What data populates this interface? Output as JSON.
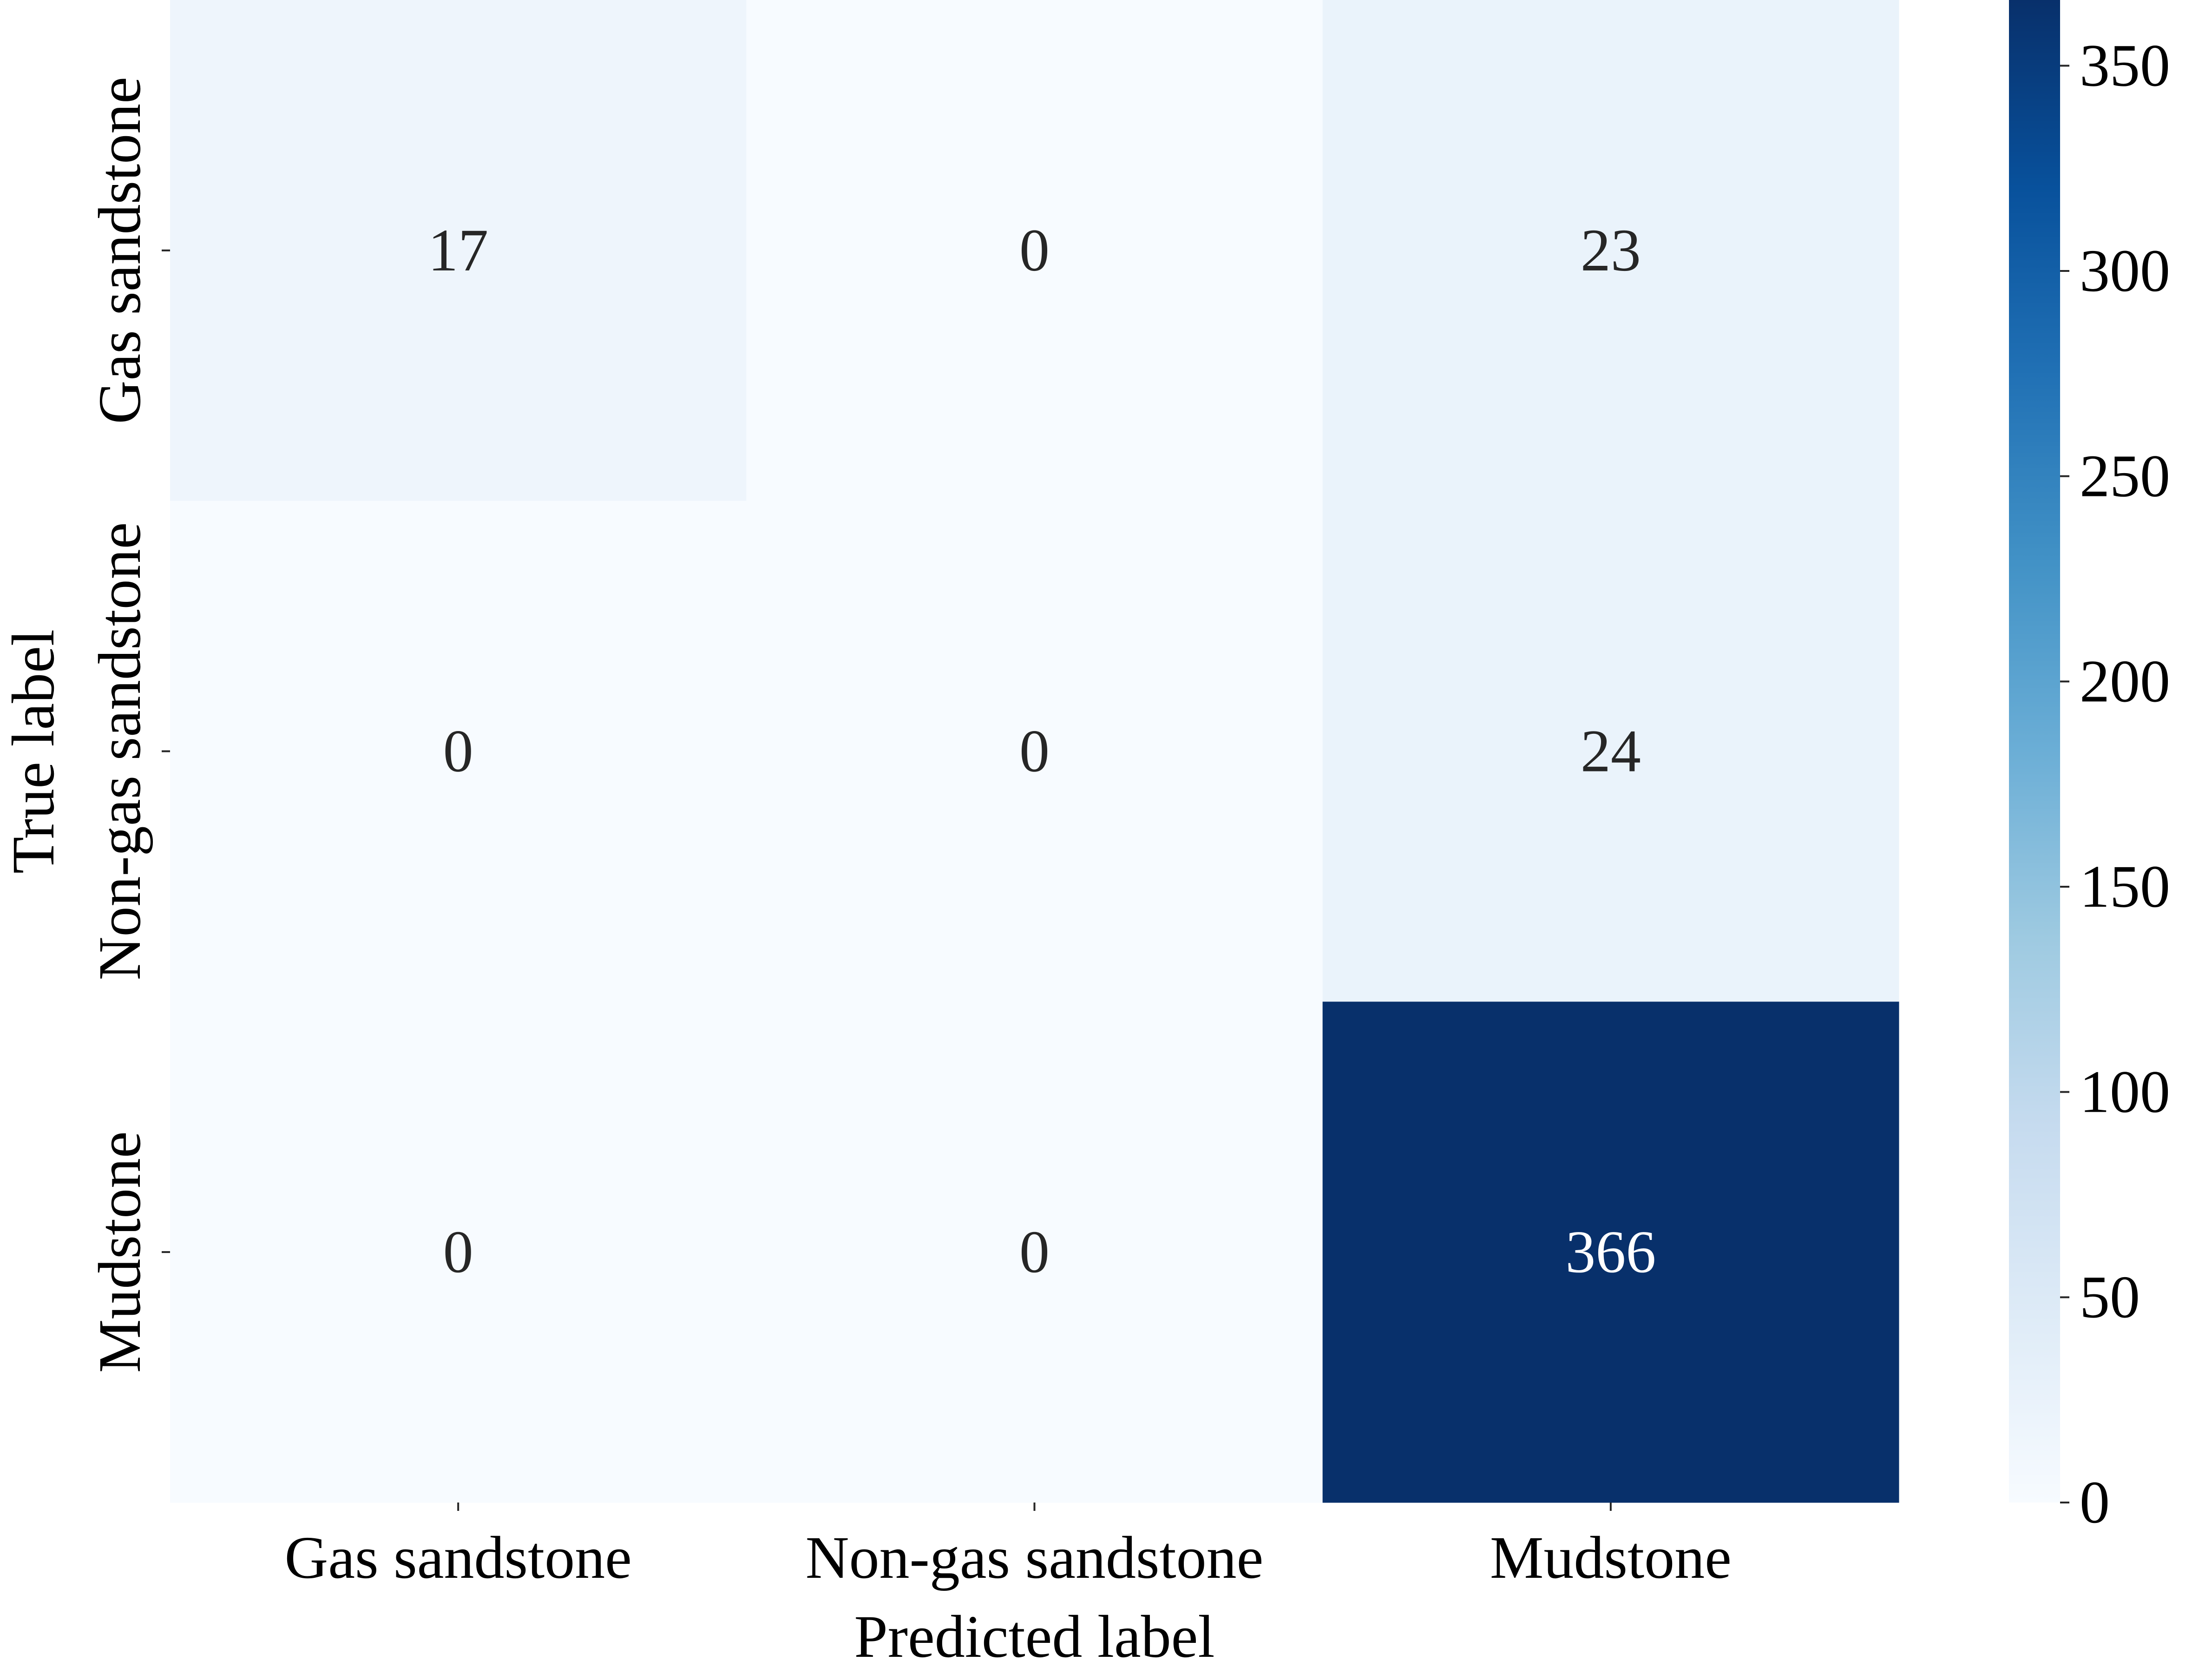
{
  "chart_data": {
    "type": "heatmap",
    "title": "",
    "xlabel": "Predicted label",
    "ylabel": "True label",
    "x_categories": [
      "Gas sandstone",
      "Non-gas sandstone",
      "Mudstone"
    ],
    "y_categories": [
      "Gas sandstone",
      "Non-gas sandstone",
      "Mudstone"
    ],
    "values": [
      [
        17,
        0,
        23
      ],
      [
        0,
        0,
        24
      ],
      [
        0,
        0,
        366
      ]
    ],
    "colormap": "Blues",
    "colormap_stops": [
      "#f7fbff",
      "#deebf7",
      "#c6dbef",
      "#9ecae1",
      "#6baed6",
      "#4292c6",
      "#2171b5",
      "#08519c",
      "#08306b"
    ],
    "colorbar": {
      "min": 0,
      "max": 366,
      "ticks": [
        0,
        50,
        100,
        150,
        200,
        250,
        300,
        350
      ],
      "tick_labels": [
        "0",
        "50",
        "100",
        "150",
        "200",
        "250",
        "300",
        "350"
      ]
    },
    "annotation_colors": {
      "dark_text": "#262626",
      "light_text": "#ffffff"
    },
    "grid": false,
    "legend": "none"
  }
}
